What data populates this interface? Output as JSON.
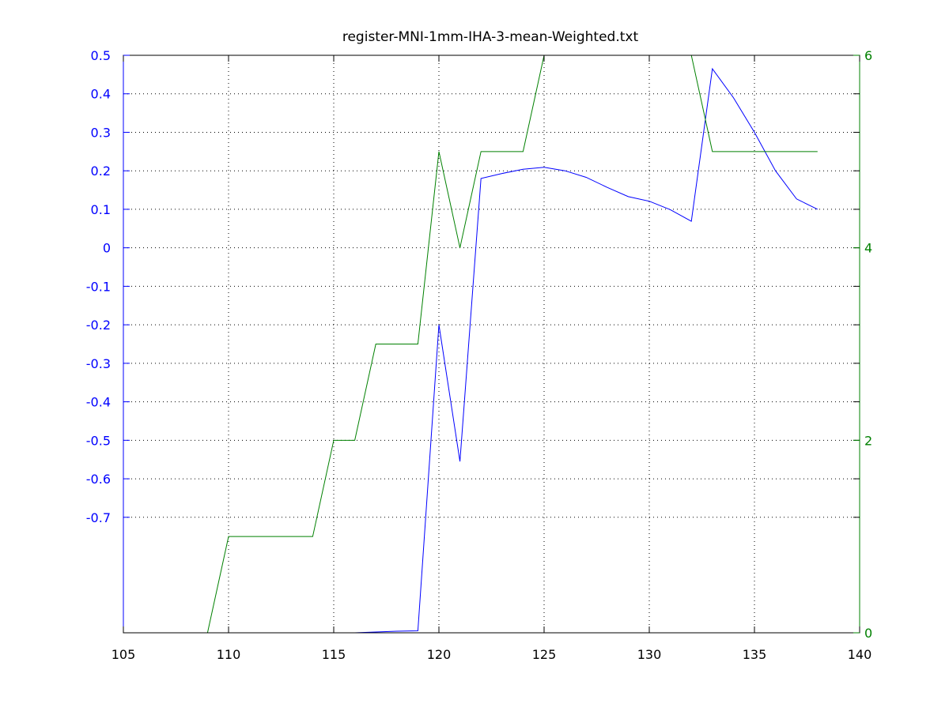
{
  "chart_data": {
    "type": "line",
    "title": "register-MNI-1mm-IHA-3-mean-Weighted.txt",
    "grid": true,
    "xlim": [
      105,
      140
    ],
    "x_ticks": [
      105,
      110,
      115,
      120,
      125,
      130,
      135,
      140
    ],
    "y_left": {
      "ylim": [
        -1.0,
        0.5
      ],
      "ticks": [
        0.5,
        0.4,
        0.3,
        0.2,
        0.1,
        0,
        -0.1,
        -0.2,
        -0.3,
        -0.4,
        -0.5,
        -0.6,
        -0.7
      ],
      "tick_labels": [
        "0.5",
        "0.4",
        "0.3",
        "0.2",
        "0.1",
        "0",
        "-0.1",
        "-0.2",
        "-0.3",
        "-0.4",
        "-0.5",
        "-0.6",
        "-0.7"
      ],
      "color": "#0000ff"
    },
    "y_right": {
      "ylim": [
        0,
        6
      ],
      "ticks": [
        0,
        2,
        4,
        6
      ],
      "tick_labels": [
        "0",
        "2",
        "4",
        "6"
      ],
      "color": "#008000"
    },
    "series": [
      {
        "axis": "left",
        "color": "#0000ff",
        "x": [
          116,
          117,
          118,
          119,
          120,
          121,
          122,
          123,
          124,
          125,
          126,
          127,
          128,
          129,
          130,
          131,
          132,
          133,
          134,
          135,
          136,
          137,
          138
        ],
        "values": [
          -1.0,
          -0.998,
          -0.996,
          -0.995,
          -0.2,
          -0.555,
          0.18,
          0.193,
          0.204,
          0.209,
          0.2,
          0.183,
          0.157,
          0.133,
          0.121,
          0.099,
          0.069,
          0.465,
          0.39,
          0.3,
          0.2,
          0.127,
          0.1
        ]
      },
      {
        "axis": "right",
        "color": "#008000",
        "x": [
          108,
          109,
          110,
          111,
          112,
          113,
          114,
          115,
          116,
          117,
          118,
          119,
          120,
          121,
          122,
          123,
          124,
          125,
          126,
          127,
          128,
          129,
          130,
          131,
          132,
          133,
          134,
          135,
          136,
          137,
          138
        ],
        "values": [
          0,
          0,
          1,
          1,
          1,
          1,
          1,
          2,
          2,
          3,
          3,
          3,
          5,
          4,
          5,
          5,
          5,
          6,
          6,
          6,
          6,
          6,
          6,
          6,
          6,
          5,
          5,
          5,
          5,
          5,
          5
        ]
      }
    ]
  }
}
